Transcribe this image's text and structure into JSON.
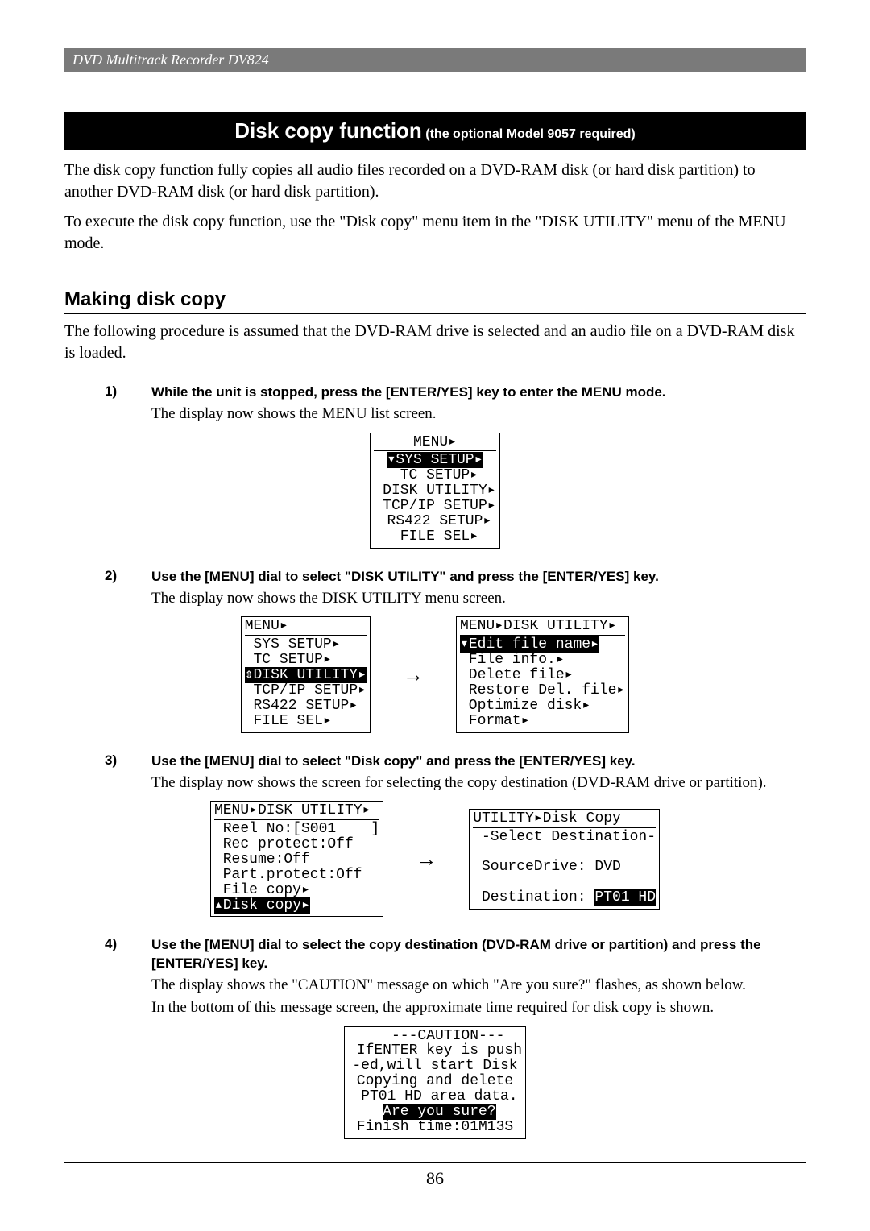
{
  "header": {
    "title": "DVD Multitrack Recorder DV824"
  },
  "section_heading": {
    "main": "Disk copy function",
    "sub": "(the optional Model 9057 required)"
  },
  "intro": {
    "p1": "The disk copy function fully copies all audio files recorded on a DVD-RAM disk (or hard disk partition) to another DVD-RAM disk (or hard disk partition).",
    "p2": "To execute the disk copy function, use the \"Disk copy\" menu item in the \"DISK UTILITY\" menu of the MENU mode."
  },
  "subheading": "Making disk copy",
  "subintro": "The following procedure is assumed that the DVD-RAM drive is selected and an audio file on a DVD-RAM disk is loaded.",
  "steps": {
    "s1": {
      "num": "1)",
      "bold": "While the unit is stopped, press the [ENTER/YES] key to enter the MENU mode.",
      "desc": "The display now shows the MENU list screen."
    },
    "s2": {
      "num": "2)",
      "bold": "Use the [MENU] dial to select \"DISK UTILITY\" and press the [ENTER/YES] key.",
      "desc": "The display now shows the DISK UTILITY menu screen."
    },
    "s3": {
      "num": "3)",
      "bold": "Use the [MENU] dial to select \"Disk copy\" and press the [ENTER/YES] key.",
      "desc": "The display now shows the screen for selecting the copy destination (DVD-RAM drive or partition)."
    },
    "s4": {
      "num": "4)",
      "bold": "Use the [MENU] dial to select the copy destination (DVD-RAM drive or partition) and press the [ENTER/YES] key.",
      "desc1": "The display shows the \"CAUTION\" message on which \"Are you sure?\" flashes, as shown below.",
      "desc2": "In the bottom of this message screen, the approximate time required for disk copy is shown."
    }
  },
  "lcd": {
    "menu1": {
      "header": "MENU▸",
      "lines": [
        "▾SYS SETUP▸",
        " TC SETUP▸",
        " DISK UTILITY▸",
        " TCP/IP SETUP▸",
        " RS422 SETUP▸",
        " FILE SEL▸"
      ],
      "highlight_index": 0
    },
    "menu2_left": {
      "header": "MENU▸",
      "lines": [
        " SYS SETUP▸",
        " TC SETUP▸",
        "⇕DISK UTILITY▸",
        " TCP/IP SETUP▸",
        " RS422 SETUP▸",
        " FILE SEL▸"
      ],
      "highlight_index": 2
    },
    "menu2_right": {
      "header": "MENU▸DISK UTILITY▸",
      "lines": [
        "▾Edit file name▸",
        " File info.▸",
        " Delete file▸",
        " Restore Del. file▸",
        " Optimize disk▸",
        " Format▸"
      ],
      "highlight_index": 0
    },
    "menu3_left": {
      "header": "MENU▸DISK UTILITY▸",
      "lines": [
        " Reel No:[S001    ]",
        " Rec protect:Off",
        " Resume:Off",
        " Part.protect:Off",
        " File copy▸",
        "▴Disk copy▸"
      ],
      "highlight_index": 5
    },
    "menu3_right": {
      "header": "UTILITY▸Disk Copy",
      "lines": [
        " -Select Destination-",
        "",
        " SourceDrive: DVD",
        "",
        " Destination: PT01 HD"
      ],
      "inv_fragment": "PT01 HD"
    },
    "caution": {
      "lines": [
        "   ---CAUTION---",
        " IfENTER key is push",
        "-ed,will start Disk",
        "Copying and delete",
        " PT01 HD area data.",
        " Are you sure?",
        "Finish time:01M13S"
      ],
      "inv_line_index": 5
    }
  },
  "page_number": "86",
  "colors": {
    "header_bg": "#7a7a7a",
    "text": "#000000",
    "bg": "#ffffff"
  }
}
